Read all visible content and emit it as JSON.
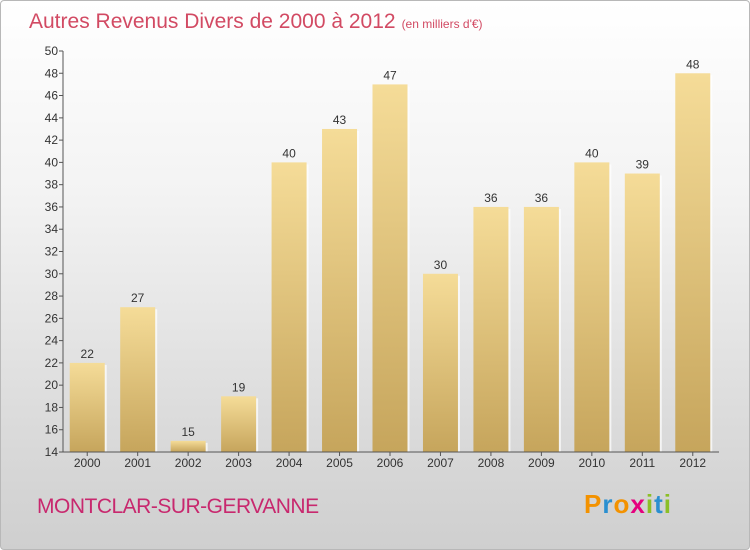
{
  "title": "Autres Revenus Divers de 2000 à 2012",
  "unit_note": "(en milliers d'€)",
  "town": "MONTCLAR-SUR-GERVANNE",
  "logo": {
    "letters": [
      "P",
      "r",
      "o",
      "x",
      "i",
      "t",
      "i"
    ],
    "colors": [
      "#f39200",
      "#2a8fd0",
      "#f39200",
      "#e5007e",
      "#8cbf26",
      "#2a8fd0",
      "#8cbf26"
    ]
  },
  "colors": {
    "bar_light": "#f5dc98",
    "bar_dark": "#c6a55c",
    "title": "#d24a63",
    "town": "#c8286e"
  },
  "chart_data": {
    "type": "bar",
    "categories": [
      "2000",
      "2001",
      "2002",
      "2003",
      "2004",
      "2005",
      "2006",
      "2007",
      "2008",
      "2009",
      "2010",
      "2011",
      "2012"
    ],
    "values": [
      22,
      27,
      15,
      19,
      40,
      43,
      47,
      30,
      36,
      36,
      40,
      39,
      48
    ],
    "ylim": [
      14,
      50
    ],
    "yticks": [
      14,
      16,
      18,
      20,
      22,
      24,
      26,
      28,
      30,
      32,
      34,
      36,
      38,
      40,
      42,
      44,
      46,
      48,
      50
    ],
    "grid": false,
    "data_labels": true
  }
}
